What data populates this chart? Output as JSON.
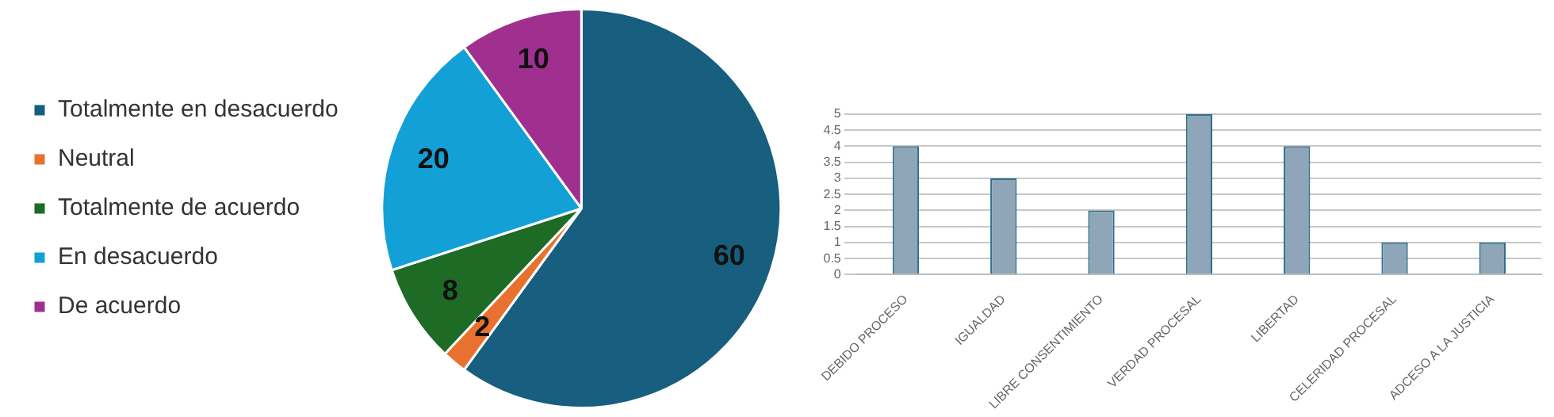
{
  "chart_data": [
    {
      "type": "pie",
      "categories": [
        "Totalmente en desacuerdo",
        "Neutral",
        "Totalmente de acuerdo",
        "En desacuerdo",
        "De acuerdo"
      ],
      "values": [
        60,
        2,
        8,
        20,
        10
      ],
      "colors": [
        "#175e7f",
        "#e9712f",
        "#1d6b25",
        "#12a0d6",
        "#a0308f"
      ],
      "data_labels": true,
      "legend": "left"
    },
    {
      "type": "bar",
      "categories": [
        "DEBIDO PROCESO",
        "IGUALDAD",
        "LIBRE CONSENTIMIENTO",
        "VERDAD PROCESAL",
        "LIBERTAD",
        "CELERIDAD PROCESAL",
        "ADCESO A LA JUSTICIA"
      ],
      "values": [
        4,
        3,
        2,
        5,
        4,
        1,
        1
      ],
      "color": "#8ea6b8",
      "ylim": [
        0,
        5
      ],
      "yticks": [
        0,
        0.5,
        1,
        1.5,
        2,
        2.5,
        3,
        3.5,
        4,
        4.5,
        5
      ],
      "grid": "y"
    }
  ]
}
